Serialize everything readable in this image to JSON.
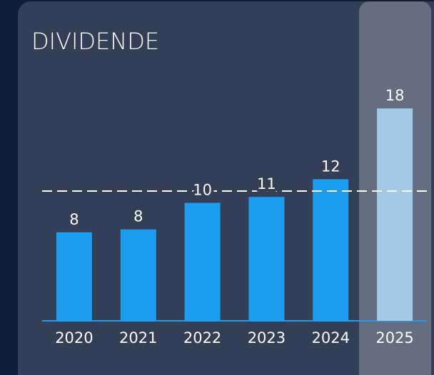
{
  "chart_data": {
    "type": "bar",
    "title": "DIVIDENDE",
    "categories": [
      "2020",
      "2021",
      "2022",
      "2023",
      "2024",
      "2025"
    ],
    "values": [
      7.5,
      7.75,
      10,
      10.5,
      12,
      18
    ],
    "value_labels": [
      "8",
      "8",
      "10",
      "11",
      "12",
      "18"
    ],
    "colors": [
      "#1b9ef0",
      "#1b9ef0",
      "#1b9ef0",
      "#1b9ef0",
      "#1b9ef0",
      "#a4c9e6"
    ],
    "highlight": 5,
    "reference_line": 11,
    "ylim": [
      0,
      20
    ]
  }
}
